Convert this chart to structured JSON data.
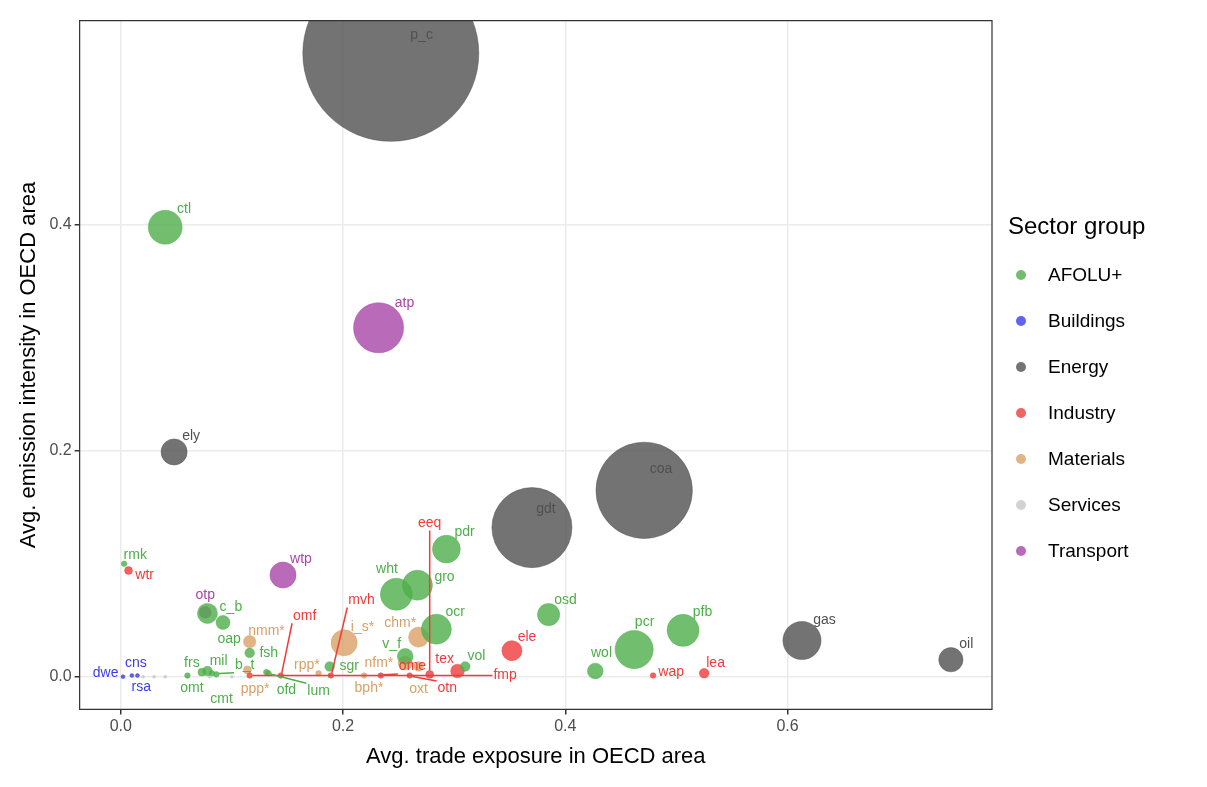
{
  "chart_data": {
    "type": "bubble",
    "xlabel": "Avg. trade exposure in OECD area",
    "ylabel": "Avg. emission intensity in OECD area",
    "legend_title": "Sector group",
    "legend": "right",
    "grid": true,
    "marker": "circle",
    "xlim": [
      -0.037,
      0.784
    ],
    "ylim": [
      -0.029,
      0.581
    ],
    "xticks": [
      {
        "value": 0,
        "label": "0.0"
      },
      0.2,
      0.4,
      0.6
    ],
    "yticks": [
      {
        "value": 0,
        "label": "0.0"
      },
      0.2,
      0.4
    ],
    "series": [
      {
        "name": "AFOLU+",
        "color": "#4daf4a",
        "x": [
          0.04,
          0.003,
          0.078,
          0.092,
          0.506,
          0.462,
          0.427,
          0.385,
          0.293,
          0.248,
          0.267,
          0.284,
          0.256,
          0.188,
          0.31,
          0.116,
          0.078,
          0.073,
          0.086,
          0.06,
          0.131,
          0.133,
          0.082
        ],
        "values": [
          0.398,
          0.1,
          0.056,
          0.048,
          0.041,
          0.024,
          0.005,
          0.055,
          0.113,
          0.073,
          0.081,
          0.042,
          0.018,
          0.009,
          0.009,
          0.021,
          0.005,
          0.004,
          0.002,
          0.001,
          0.004,
          0.003,
          0.003
        ],
        "sizes": [
          0.037,
          0.001,
          0.013,
          0.0063,
          0.033,
          0.047,
          0.008,
          0.016,
          0.025,
          0.033,
          0.029,
          0.029,
          0.008,
          0.003,
          0.003,
          0.003,
          0.003,
          0.002,
          0.001,
          0.001,
          0.001,
          0.001,
          0.001
        ]
      },
      {
        "name": "Buildings",
        "color": "#3b3bf0",
        "x": [
          0.002,
          0.01,
          0.015
        ],
        "values": [
          0.0,
          0.001,
          0.001
        ],
        "sizes": [
          0.0005,
          0.0005,
          0.0005
        ]
      },
      {
        "name": "Energy",
        "color": "#505050",
        "x": [
          0.048,
          0.243,
          0.37,
          0.471,
          0.613,
          0.747
        ],
        "values": [
          0.199,
          0.552,
          0.132,
          0.165,
          0.032,
          0.015
        ],
        "sizes": [
          0.022,
          1,
          0.207,
          0.3,
          0.047,
          0.019
        ]
      },
      {
        "name": "Industry",
        "color": "#f03b3b",
        "x": [
          0.007,
          0.479,
          0.525,
          0.303,
          0.352,
          0.116,
          0.144,
          0.189,
          0.234,
          0.26,
          0.278
        ],
        "values": [
          0.094,
          0.001,
          0.003,
          0.005,
          0.023,
          0.001,
          0.001,
          0.001,
          0.001,
          0.001,
          0.002
        ],
        "sizes": [
          0.002,
          0.001,
          0.003,
          0.006,
          0.013,
          0.001,
          0.001,
          0.001,
          0.001,
          0.001,
          0.002
        ]
      },
      {
        "name": "Materials",
        "color": "#d9a066",
        "x": [
          0.268,
          0.256,
          0.268,
          0.219,
          0.201,
          0.178,
          0.116,
          0.114
        ],
        "values": [
          0.035,
          0.012,
          0.009,
          0.001,
          0.03,
          0.003,
          0.031,
          0.006
        ],
        "sizes": [
          0.013,
          0.0063,
          0.003,
          0.001,
          0.022,
          0.001,
          0.005,
          0.002
        ]
      },
      {
        "name": "Services",
        "color": "#c8c8c8",
        "x": [
          0.02,
          0.03,
          0.04,
          0.06,
          0.08,
          0.1
        ],
        "values": [
          0.0,
          0.0,
          0.0,
          0.0,
          0.0,
          0.0
        ],
        "sizes": [
          0.0003,
          0.0003,
          0.0003,
          0.0003,
          0.0003,
          0.0003
        ]
      },
      {
        "name": "Transport",
        "color": "#a845a8",
        "x": [
          0.076,
          0.146,
          0.232
        ],
        "values": [
          0.057,
          0.09,
          0.309
        ],
        "sizes": [
          0.0046,
          0.022,
          0.081
        ]
      }
    ],
    "annotations": [
      {
        "text": "p_c",
        "x": 0.243,
        "y": 0.552
      },
      {
        "text": "ctl",
        "x": 0.04,
        "y": 0.398
      },
      {
        "text": "atp",
        "x": 0.232,
        "y": 0.309
      },
      {
        "text": "ely",
        "x": 0.048,
        "y": 0.199
      },
      {
        "text": "coa",
        "x": 0.471,
        "y": 0.165
      },
      {
        "text": "gdt",
        "x": 0.37,
        "y": 0.132
      },
      {
        "text": "pdr",
        "x": 0.293,
        "y": 0.113
      },
      {
        "text": "rmk",
        "x": 0.003,
        "y": 0.1
      },
      {
        "text": "wtr",
        "x": 0.007,
        "y": 0.094
      },
      {
        "text": "otp",
        "x": 0.076,
        "y": 0.057
      },
      {
        "text": "c_b",
        "x": 0.078,
        "y": 0.056
      },
      {
        "text": "oap",
        "x": 0.092,
        "y": 0.048
      },
      {
        "text": "wtp",
        "x": 0.146,
        "y": 0.09
      },
      {
        "text": "wht",
        "x": 0.248,
        "y": 0.073
      },
      {
        "text": "gro",
        "x": 0.267,
        "y": 0.081
      },
      {
        "text": "osd",
        "x": 0.385,
        "y": 0.055
      },
      {
        "text": "pfb",
        "x": 0.506,
        "y": 0.041
      },
      {
        "text": "pcr",
        "x": 0.462,
        "y": 0.024
      },
      {
        "text": "ocr",
        "x": 0.284,
        "y": 0.042
      },
      {
        "text": "ele",
        "x": 0.352,
        "y": 0.023
      },
      {
        "text": "gas",
        "x": 0.613,
        "y": 0.032
      },
      {
        "text": "oil",
        "x": 0.747,
        "y": 0.015
      },
      {
        "text": "chm*",
        "x": 0.268,
        "y": 0.035
      },
      {
        "text": "i_s*",
        "x": 0.201,
        "y": 0.03
      },
      {
        "text": "fsh",
        "x": 0.116,
        "y": 0.021
      },
      {
        "text": "nmm*",
        "x": 0.116,
        "y": 0.031
      },
      {
        "text": "v_f",
        "x": 0.256,
        "y": 0.018
      },
      {
        "text": "nfm*",
        "x": 0.256,
        "y": 0.012
      },
      {
        "text": "sgr",
        "x": 0.188,
        "y": 0.009
      },
      {
        "text": "wol",
        "x": 0.427,
        "y": 0.005
      },
      {
        "text": "lea",
        "x": 0.525,
        "y": 0.003
      },
      {
        "text": "wap",
        "x": 0.479,
        "y": 0.001
      },
      {
        "text": "vol",
        "x": 0.31,
        "y": 0.009
      },
      {
        "text": "tex",
        "x": 0.303,
        "y": 0.005
      },
      {
        "text": "oxt",
        "x": 0.268,
        "y": 0.009
      },
      {
        "text": "mil",
        "x": 0.078,
        "y": 0.005
      },
      {
        "text": "frs",
        "x": 0.073,
        "y": 0.004
      },
      {
        "text": "ppp*",
        "x": 0.114,
        "y": 0.006
      },
      {
        "text": "rpp*",
        "x": 0.178,
        "y": 0.003
      },
      {
        "text": "bph*",
        "x": 0.219,
        "y": 0.001
      },
      {
        "text": "ofd",
        "x": 0.131,
        "y": 0.004
      },
      {
        "text": "cns",
        "x": 0.01,
        "y": 0.001
      },
      {
        "text": "dwe",
        "x": 0.002,
        "y": 0.0
      },
      {
        "text": "rsa",
        "x": 0.015,
        "y": 0.001
      },
      {
        "text": "omt",
        "x": 0.06,
        "y": 0.001
      },
      {
        "text": "cmt",
        "x": 0.082,
        "y": 0.003
      },
      {
        "text": "b_t",
        "x": 0.086,
        "y": 0.002
      },
      {
        "text": "fmp",
        "x": 0.116,
        "y": 0.001
      },
      {
        "text": "lum",
        "x": 0.133,
        "y": 0.003
      },
      {
        "text": "omf",
        "x": 0.144,
        "y": 0.001
      },
      {
        "text": "mvh",
        "x": 0.189,
        "y": 0.001
      },
      {
        "text": "ome",
        "x": 0.234,
        "y": 0.001
      },
      {
        "text": "otn",
        "x": 0.26,
        "y": 0.001
      },
      {
        "text": "eeq",
        "x": 0.278,
        "y": 0.002
      }
    ]
  }
}
